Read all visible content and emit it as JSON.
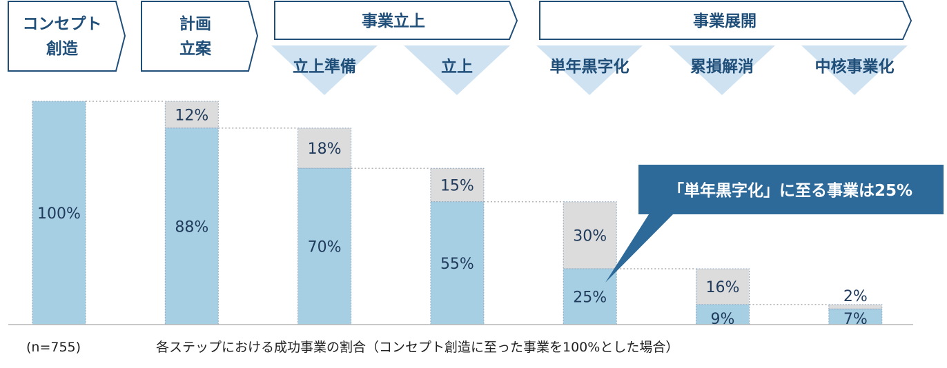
{
  "stages": [
    {
      "lines": [
        "コンセプト",
        "創造"
      ]
    },
    {
      "lines": [
        "計画",
        "立案"
      ]
    },
    {
      "lines": [
        "事業立上"
      ]
    },
    {
      "lines": [
        "事業展開"
      ]
    }
  ],
  "substages": [
    "立上準備",
    "立上",
    "単年黒字化",
    "累損解消",
    "中核事業化"
  ],
  "chart_data": {
    "type": "bar",
    "stacked": true,
    "categories": [
      "コンセプト創造",
      "計画立案",
      "立上準備",
      "立上",
      "単年黒字化",
      "累損解消",
      "中核事業化"
    ],
    "series": [
      {
        "name": "",
        "values": [
          100,
          88,
          70,
          55,
          25,
          9,
          7
        ],
        "labels": [
          "100%",
          "88%",
          "70%",
          "55%",
          "25%",
          "9%",
          "7%"
        ]
      },
      {
        "name": "",
        "values": [
          0,
          12,
          18,
          15,
          30,
          16,
          2
        ],
        "labels": [
          "",
          "12%",
          "18%",
          "15%",
          "30%",
          "16%",
          "2%"
        ]
      }
    ],
    "ylim": [
      0,
      100
    ],
    "colors": {
      "success": "#a6cfe4",
      "dropout": "#dcdcdc",
      "border": "#8fa8c0",
      "callout": "#2d6a99",
      "accent": "#1f4e79"
    },
    "callout": "「単年黒字化」に至る事業は25%"
  },
  "footnote": {
    "n": "(n=755)",
    "caption": "各ステップにおける成功事業の割合（コンセプト創造に至った事業を100%とした場合）"
  }
}
